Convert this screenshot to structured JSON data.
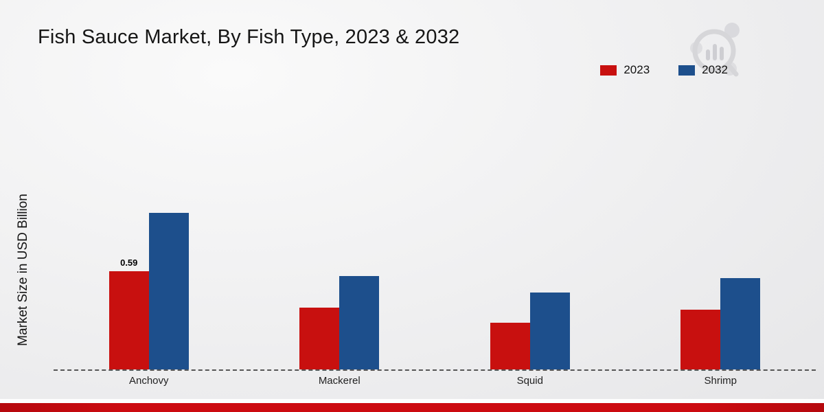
{
  "page": {
    "title": "Fish Sauce Market, By Fish Type, 2023 & 2032",
    "y_axis_label": "Market Size in USD Billion"
  },
  "colors": {
    "series_2023": "#c8100f",
    "series_2032": "#1d4f8c",
    "footer_strip": "#cc0a10"
  },
  "chart_data": {
    "type": "bar",
    "categories": [
      "Anchovy",
      "Mackerel",
      "Squid",
      "Shrimp"
    ],
    "series": [
      {
        "name": "2023",
        "color": "#c8100f",
        "values": [
          0.59,
          0.37,
          0.28,
          0.36
        ]
      },
      {
        "name": "2032",
        "color": "#1d4f8c",
        "values": [
          0.94,
          0.56,
          0.46,
          0.55
        ]
      }
    ],
    "data_labels": [
      {
        "series": "2023",
        "category": "Anchovy",
        "text": "0.59"
      }
    ],
    "title": "Fish Sauce Market, By Fish Type, 2023 & 2032",
    "xlabel": "",
    "ylabel": "Market Size in USD Billion",
    "ylim": [
      0,
      1.6
    ],
    "grid": false,
    "legend_position": "top-right",
    "baseline_style": "dashed"
  }
}
